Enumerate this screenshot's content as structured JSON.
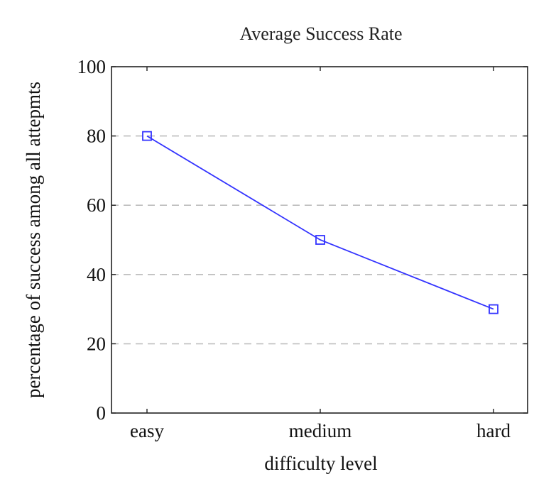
{
  "chart_data": {
    "type": "line",
    "title": "Average Success Rate",
    "xlabel": "difficulty level",
    "ylabel": "percentage of success among all attepmts",
    "categories": [
      "easy",
      "medium",
      "hard"
    ],
    "series": [
      {
        "values": [
          80,
          50,
          30
        ],
        "color": "#3333ff",
        "marker": "square"
      }
    ],
    "ylim": [
      0,
      100
    ],
    "yticks": [
      0,
      20,
      40,
      60,
      80,
      100
    ],
    "grid": {
      "y": true,
      "x": false,
      "style": "dashed"
    },
    "legend": "none"
  }
}
